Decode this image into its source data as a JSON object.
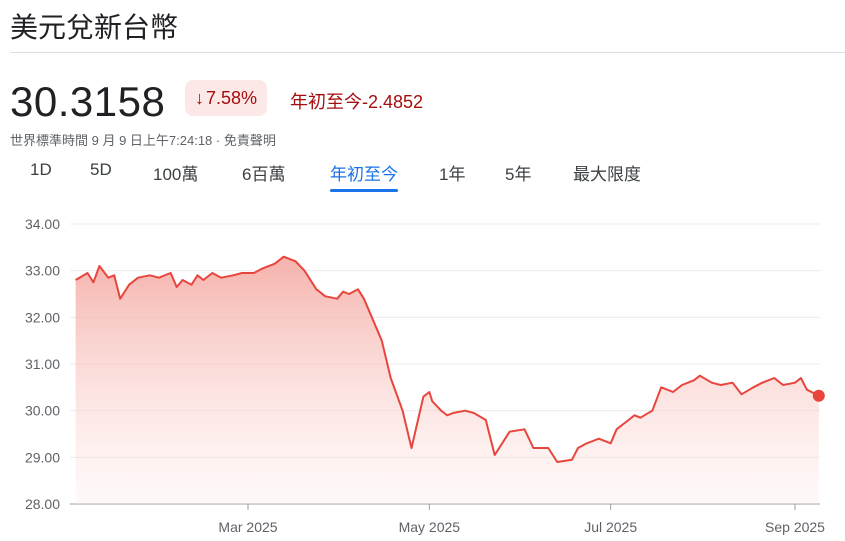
{
  "header": {
    "title": "美元兌新台幣"
  },
  "quote": {
    "price": "30.3158",
    "change_pct": "7.58%",
    "period_label": "年初至今",
    "change_abs": "-2.4852",
    "timestamp": "世界標準時間 9 月 9 日上午7:24:18 · 免責聲明"
  },
  "tabs": [
    {
      "label": "1D"
    },
    {
      "label": "5D"
    },
    {
      "label": "100萬"
    },
    {
      "label": "6百萬"
    },
    {
      "label": "年初至今",
      "active": true
    },
    {
      "label": "1年"
    },
    {
      "label": "5年"
    },
    {
      "label": "最大限度"
    }
  ],
  "colors": {
    "line": "#e8453c",
    "badge_bg": "#fce8e6",
    "negative": "#a50e0e",
    "active_tab": "#1a73e8"
  },
  "chart_data": {
    "type": "area",
    "ylim": [
      28,
      34
    ],
    "yticks": [
      "34.00",
      "33.00",
      "32.00",
      "31.00",
      "30.00",
      "29.00",
      "28.00"
    ],
    "xticks": [
      {
        "label": "Mar 2025",
        "date": "2025-03-01"
      },
      {
        "label": "May 2025",
        "date": "2025-05-01"
      },
      {
        "label": "Jul 2025",
        "date": "2025-07-01"
      },
      {
        "label": "Sep 2025",
        "date": "2025-09-01"
      }
    ],
    "x": [
      "2025-01-02",
      "2025-01-06",
      "2025-01-08",
      "2025-01-10",
      "2025-01-13",
      "2025-01-15",
      "2025-01-17",
      "2025-01-20",
      "2025-01-23",
      "2025-01-27",
      "2025-01-30",
      "2025-02-03",
      "2025-02-05",
      "2025-02-07",
      "2025-02-10",
      "2025-02-12",
      "2025-02-14",
      "2025-02-17",
      "2025-02-20",
      "2025-02-24",
      "2025-02-27",
      "2025-03-03",
      "2025-03-06",
      "2025-03-10",
      "2025-03-13",
      "2025-03-17",
      "2025-03-20",
      "2025-03-24",
      "2025-03-27",
      "2025-03-31",
      "2025-04-02",
      "2025-04-04",
      "2025-04-07",
      "2025-04-09",
      "2025-04-11",
      "2025-04-15",
      "2025-04-18",
      "2025-04-22",
      "2025-04-25",
      "2025-04-29",
      "2025-05-01",
      "2025-05-02",
      "2025-05-05",
      "2025-05-06",
      "2025-05-07",
      "2025-05-09",
      "2025-05-13",
      "2025-05-16",
      "2025-05-20",
      "2025-05-23",
      "2025-05-28",
      "2025-06-02",
      "2025-06-05",
      "2025-06-10",
      "2025-06-13",
      "2025-06-18",
      "2025-06-20",
      "2025-06-23",
      "2025-06-25",
      "2025-06-27",
      "2025-07-01",
      "2025-07-03",
      "2025-07-07",
      "2025-07-09",
      "2025-07-11",
      "2025-07-15",
      "2025-07-18",
      "2025-07-22",
      "2025-07-25",
      "2025-07-29",
      "2025-07-31",
      "2025-08-04",
      "2025-08-07",
      "2025-08-11",
      "2025-08-14",
      "2025-08-18",
      "2025-08-21",
      "2025-08-25",
      "2025-08-28",
      "2025-09-01",
      "2025-09-03",
      "2025-09-05",
      "2025-09-09"
    ],
    "values": [
      32.8,
      32.95,
      32.75,
      33.1,
      32.85,
      32.9,
      32.4,
      32.7,
      32.85,
      32.9,
      32.85,
      32.95,
      32.65,
      32.8,
      32.7,
      32.9,
      32.8,
      32.95,
      32.85,
      32.9,
      32.95,
      32.95,
      33.05,
      33.15,
      33.3,
      33.2,
      33.0,
      32.6,
      32.45,
      32.4,
      32.55,
      32.5,
      32.6,
      32.4,
      32.1,
      31.5,
      30.7,
      30.0,
      29.2,
      30.3,
      30.4,
      30.2,
      30.0,
      29.95,
      29.9,
      29.95,
      30.0,
      29.95,
      29.8,
      29.05,
      29.55,
      29.6,
      29.2,
      29.2,
      28.9,
      28.95,
      29.2,
      29.3,
      29.35,
      29.4,
      29.3,
      29.6,
      29.8,
      29.9,
      29.85,
      30.0,
      30.5,
      30.4,
      30.55,
      30.65,
      30.75,
      30.6,
      30.55,
      30.6,
      30.35,
      30.5,
      30.6,
      30.7,
      30.55,
      30.6,
      30.7,
      30.45,
      30.32
    ]
  }
}
